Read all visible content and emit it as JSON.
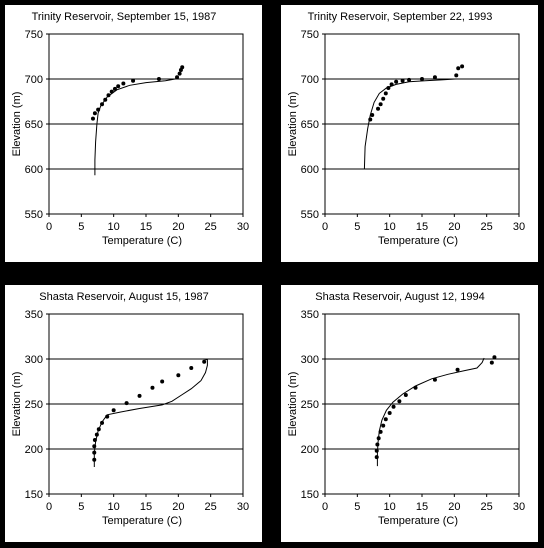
{
  "chart_data": [
    {
      "type": "scatter",
      "title": "Trinity Reservoir, September 15, 1987",
      "xlabel": "Temperature (C)",
      "ylabel": "Elevation (m)",
      "xlim": [
        0,
        30
      ],
      "ylim": [
        550,
        750
      ],
      "xticks": [
        0,
        5,
        10,
        15,
        20,
        25,
        30
      ],
      "yticks": [
        550,
        600,
        650,
        700,
        750
      ],
      "grid_y": [
        600,
        650,
        700,
        750
      ],
      "series": [
        {
          "kind": "points",
          "x": [
            6.8,
            7.1,
            7.6,
            8.2,
            8.7,
            9.2,
            9.7,
            10.2,
            10.7,
            11.5,
            13.0,
            17.0,
            19.8,
            20.2,
            20.4,
            20.6
          ],
          "y": [
            656,
            662,
            666,
            672,
            677,
            682,
            686,
            689,
            692,
            695,
            698,
            700,
            702,
            706,
            710,
            713
          ]
        },
        {
          "kind": "line",
          "x": [
            7.1,
            7.1,
            7.2,
            7.4,
            7.6,
            8.0,
            9.0,
            10.5,
            12.5,
            15.0,
            18.0,
            19.5,
            20.0
          ],
          "y": [
            593,
            610,
            630,
            650,
            662,
            670,
            680,
            688,
            693,
            696,
            698,
            700,
            702
          ]
        }
      ]
    },
    {
      "type": "scatter",
      "title": "Trinity Reservoir, September 22, 1993",
      "xlabel": "Temperature (C)",
      "ylabel": "Elevation (m)",
      "xlim": [
        0,
        30
      ],
      "ylim": [
        550,
        750
      ],
      "xticks": [
        0,
        5,
        10,
        15,
        20,
        25,
        30
      ],
      "yticks": [
        550,
        600,
        650,
        700,
        750
      ],
      "grid_y": [
        600,
        650,
        700,
        750
      ],
      "series": [
        {
          "kind": "points",
          "x": [
            7.0,
            7.3,
            8.2,
            8.6,
            9.0,
            9.4,
            9.8,
            10.3,
            11.0,
            12.0,
            13.0,
            15.0,
            17.0,
            20.3,
            20.6,
            21.2
          ],
          "y": [
            655,
            660,
            667,
            672,
            678,
            684,
            690,
            694,
            697,
            698,
            699,
            700,
            702,
            704,
            712,
            714
          ]
        },
        {
          "kind": "line",
          "x": [
            6.1,
            6.2,
            6.6,
            7.0,
            7.6,
            8.4,
            9.5,
            11.0,
            13.0,
            15.5,
            18.0,
            20.2
          ],
          "y": [
            600,
            625,
            645,
            660,
            674,
            684,
            690,
            694,
            697,
            698,
            699,
            700
          ]
        }
      ]
    },
    {
      "type": "scatter",
      "title": "Shasta Reservoir, August 15, 1987",
      "xlabel": "Temperature (C)",
      "ylabel": "Elevation (m)",
      "xlim": [
        0,
        30
      ],
      "ylim": [
        150,
        350
      ],
      "xticks": [
        0,
        5,
        10,
        15,
        20,
        25,
        30
      ],
      "yticks": [
        150,
        200,
        250,
        300,
        350
      ],
      "grid_y": [
        200,
        250,
        300,
        350
      ],
      "series": [
        {
          "kind": "points",
          "x": [
            7.0,
            7.0,
            7.0,
            7.1,
            7.4,
            7.7,
            8.2,
            9.0,
            10.0,
            12.0,
            14.0,
            16.0,
            17.5,
            20.0,
            22.0,
            24.0
          ],
          "y": [
            188,
            196,
            203,
            210,
            216,
            222,
            229,
            236,
            243,
            251,
            259,
            268,
            275,
            282,
            290,
            297
          ]
        },
        {
          "kind": "line",
          "x": [
            7.0,
            7.0,
            7.2,
            7.6,
            8.2,
            9.0,
            11.0,
            14.0,
            17.5,
            19.0,
            20.5,
            22.0,
            23.5,
            24.2,
            24.5,
            24.5,
            24.0
          ],
          "y": [
            180,
            195,
            208,
            220,
            230,
            238,
            241,
            245,
            249,
            253,
            260,
            267,
            276,
            285,
            293,
            299,
            300
          ]
        }
      ]
    },
    {
      "type": "scatter",
      "title": "Shasta Reservoir, August 12, 1994",
      "xlabel": "Temperature (C)",
      "ylabel": "Elevation (m)",
      "xlim": [
        0,
        30
      ],
      "ylim": [
        150,
        350
      ],
      "xticks": [
        0,
        5,
        10,
        15,
        20,
        25,
        30
      ],
      "yticks": [
        150,
        200,
        250,
        300,
        350
      ],
      "grid_y": [
        200,
        250,
        300,
        350
      ],
      "series": [
        {
          "kind": "points",
          "x": [
            8.0,
            8.0,
            8.1,
            8.3,
            8.6,
            9.0,
            9.4,
            10.0,
            10.6,
            11.5,
            12.5,
            14.0,
            17.0,
            20.5,
            25.8,
            26.2
          ],
          "y": [
            191,
            198,
            205,
            212,
            219,
            226,
            233,
            240,
            247,
            253,
            260,
            268,
            277,
            288,
            296,
            302
          ]
        },
        {
          "kind": "line",
          "x": [
            8.1,
            8.1,
            8.2,
            8.4,
            8.8,
            9.5,
            10.5,
            12.0,
            14.0,
            16.5,
            19.0,
            21.5,
            23.5,
            24.3,
            24.6
          ],
          "y": [
            181,
            195,
            207,
            220,
            232,
            243,
            252,
            261,
            270,
            278,
            283,
            287,
            290,
            296,
            301
          ]
        }
      ]
    }
  ]
}
